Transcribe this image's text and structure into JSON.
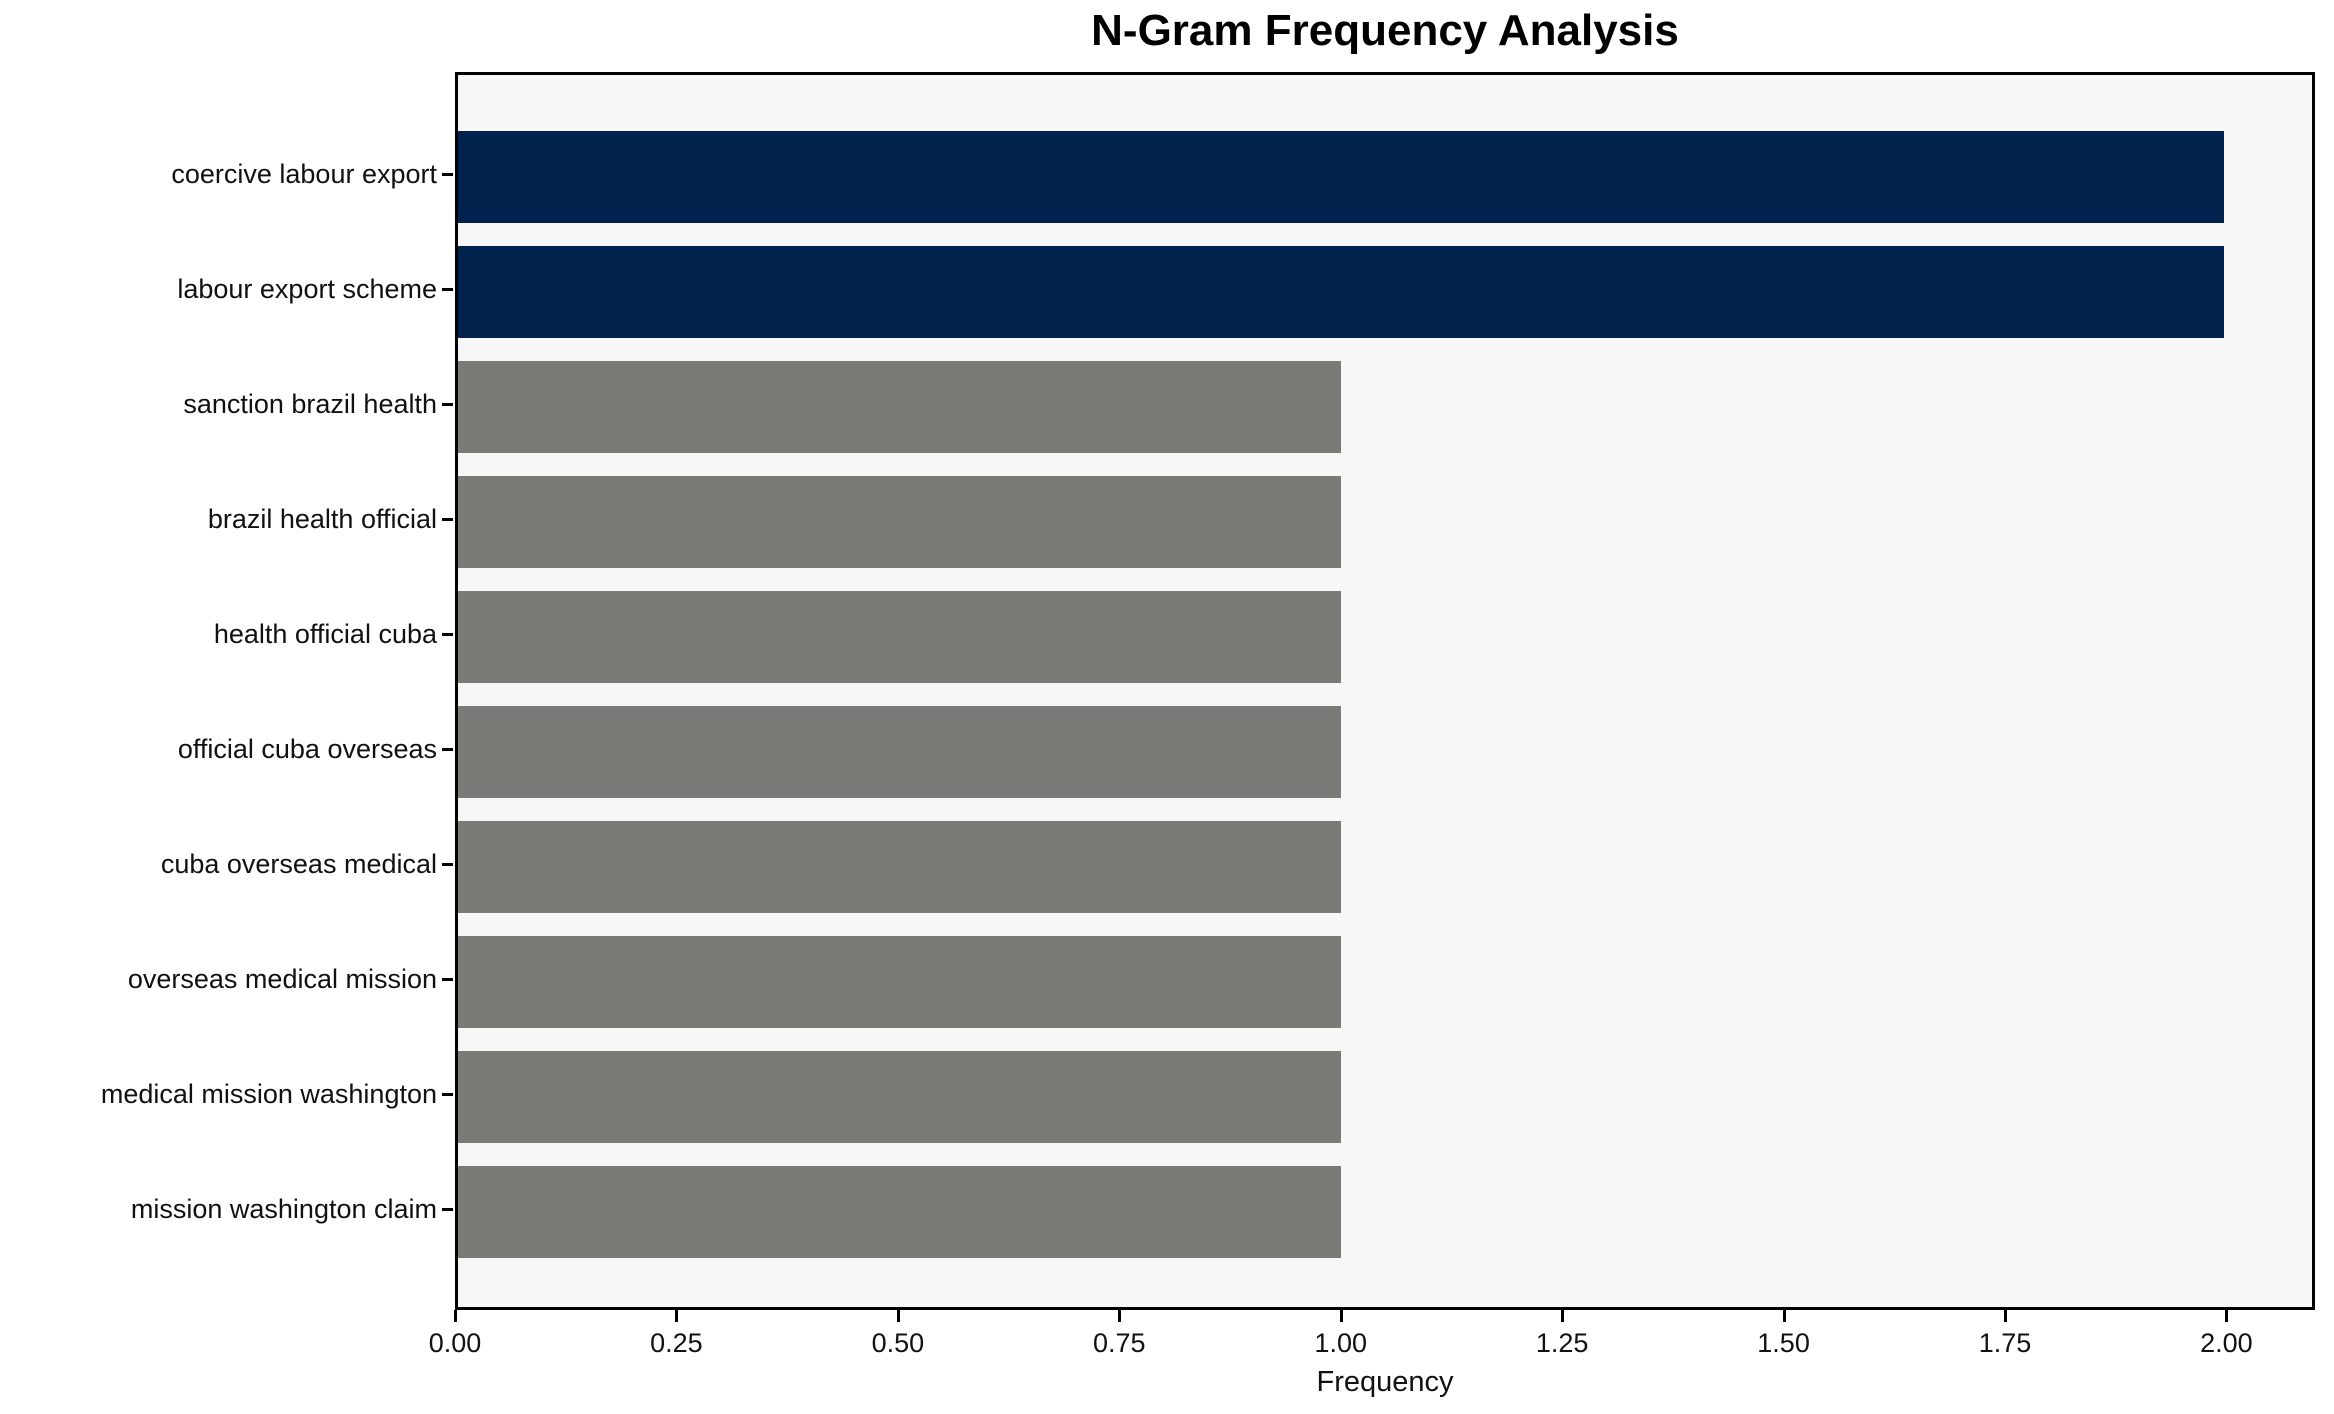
{
  "colors": {
    "highlight_bar": "#02234d",
    "default_bar": "#7a7a76",
    "plot_background": "#f7f7f7",
    "figure_background": "#ffffff",
    "spine": "#000000",
    "text": "#111111"
  },
  "chart_data": {
    "type": "bar",
    "orientation": "horizontal",
    "title": "N-Gram Frequency Analysis",
    "xlabel": "Frequency",
    "ylabel": "",
    "categories": [
      "coercive labour export",
      "labour export scheme",
      "sanction brazil health",
      "brazil health official",
      "health official cuba",
      "official cuba overseas",
      "cuba overseas medical",
      "overseas medical mission",
      "medical mission washington",
      "mission washington claim"
    ],
    "values": [
      2,
      2,
      1,
      1,
      1,
      1,
      1,
      1,
      1,
      1
    ],
    "bar_colors": [
      "#02234d",
      "#02234d",
      "#7a7a76",
      "#7a7a76",
      "#7a7a76",
      "#7a7a76",
      "#7a7a76",
      "#7a7a76",
      "#7a7a76",
      "#7a7a76"
    ],
    "xlim": [
      0,
      2.1
    ],
    "x_tick_values": [
      0,
      0.25,
      0.5,
      0.75,
      1.0,
      1.25,
      1.5,
      1.75,
      2.0
    ],
    "x_tick_labels": [
      "0.00",
      "0.25",
      "0.50",
      "0.75",
      "1.00",
      "1.25",
      "1.50",
      "1.75",
      "2.00"
    ],
    "legend": null,
    "grid": false
  }
}
